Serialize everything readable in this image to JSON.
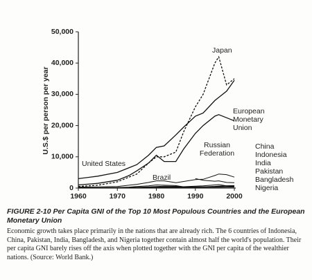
{
  "chart_data": {
    "type": "line",
    "ylabel": "U.S.$ per person per year",
    "x": [
      1960,
      1965,
      1970,
      1973,
      1975,
      1978,
      1980,
      1982,
      1985,
      1987,
      1990,
      1992,
      1995,
      1996,
      1998,
      2000
    ],
    "xlim": [
      1960,
      2000
    ],
    "xticks": [
      1960,
      1970,
      1980,
      1990,
      2000
    ],
    "ylim": [
      0,
      50000
    ],
    "yticks": [
      0,
      {
        "value": 10000,
        "label": "10,000"
      },
      {
        "value": 20000,
        "label": "20,000"
      },
      {
        "value": 30000,
        "label": "30,000"
      },
      {
        "value": 40000,
        "label": "40,000"
      },
      {
        "value": 50000,
        "label": "50,000"
      }
    ],
    "series": [
      {
        "name": "Japan",
        "color": "#111",
        "style": "dashed",
        "values": [
          500,
          900,
          2000,
          3500,
          4500,
          8000,
          10000,
          10000,
          11500,
          18000,
          26000,
          30000,
          40000,
          42000,
          33000,
          35000
        ]
      },
      {
        "name": "United States",
        "color": "#111",
        "style": "solid",
        "values": [
          3000,
          3800,
          5000,
          6500,
          7500,
          10500,
          13000,
          13500,
          17000,
          19500,
          23000,
          24000,
          28000,
          29000,
          31000,
          34500
        ]
      },
      {
        "name": "European Monetary Union",
        "color": "#111",
        "style": "solid",
        "values": [
          1000,
          1500,
          2500,
          4000,
          5500,
          8000,
          10500,
          8500,
          8500,
          12500,
          17500,
          20000,
          23000,
          23500,
          22500,
          21500
        ]
      },
      {
        "name": "Russian Federation",
        "color": "#111",
        "style": "solid",
        "values": [
          null,
          null,
          null,
          null,
          null,
          null,
          null,
          null,
          null,
          null,
          3000,
          2500,
          2200,
          2300,
          1800,
          1700
        ]
      },
      {
        "name": "Brazil",
        "color": "#111",
        "style": "solid",
        "values": [
          300,
          400,
          500,
          900,
          1200,
          1800,
          2300,
          2300,
          1700,
          2100,
          2700,
          2800,
          4000,
          4500,
          4300,
          3500
        ]
      },
      {
        "name": "China",
        "color": "#111",
        "style": "solid",
        "values": [
          100,
          100,
          120,
          150,
          170,
          200,
          250,
          280,
          300,
          320,
          330,
          400,
          550,
          650,
          750,
          800
        ]
      },
      {
        "name": "Indonesia",
        "color": "#111",
        "style": "solid",
        "values": [
          100,
          100,
          100,
          150,
          250,
          400,
          500,
          600,
          550,
          450,
          600,
          700,
          1000,
          1100,
          700,
          600
        ]
      },
      {
        "name": "India",
        "color": "#111",
        "style": "solid",
        "values": [
          100,
          120,
          120,
          130,
          170,
          200,
          250,
          270,
          300,
          320,
          350,
          320,
          350,
          380,
          420,
          450
        ]
      },
      {
        "name": "Pakistan",
        "color": "#111",
        "style": "solid",
        "values": [
          100,
          120,
          150,
          150,
          170,
          250,
          300,
          350,
          350,
          350,
          380,
          400,
          450,
          480,
          470,
          450
        ]
      },
      {
        "name": "Bangladesh",
        "color": "#111",
        "style": "solid",
        "values": [
          100,
          100,
          120,
          120,
          150,
          150,
          170,
          170,
          180,
          180,
          220,
          240,
          270,
          300,
          340,
          370
        ]
      },
      {
        "name": "Nigeria",
        "color": "#111",
        "style": "solid",
        "values": [
          100,
          120,
          150,
          300,
          500,
          700,
          1000,
          900,
          800,
          400,
          300,
          300,
          260,
          280,
          300,
          300
        ]
      }
    ]
  },
  "caption": {
    "title": "FIGURE 2-10 Per Capita GNI of the Top 10 Most Populous Countries and the European Monetary Union",
    "text": "Economic growth takes place primarily in the nations that are already rich. The 6 countries of Indonesia, China, Pakistan, India, Bangladesh, and Nigeria together contain almost half the world's population. Their per capita GNI barely rises off the axis when plotted together with the GNI per capita of the wealthier nations. (Source: World Bank.)"
  }
}
